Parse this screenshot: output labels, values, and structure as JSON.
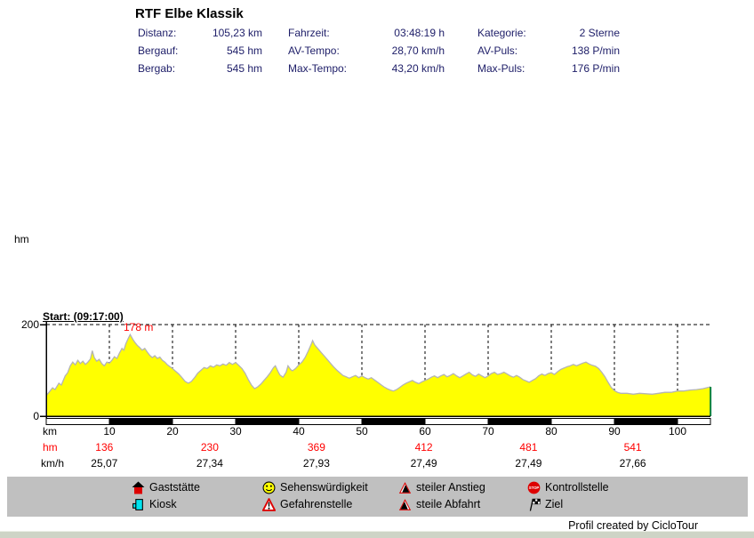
{
  "title": "RTF Elbe Klassik",
  "stats": {
    "rows": [
      {
        "c1_label": "Distanz:",
        "c1_value": "105,23 km",
        "c2_label": "Fahrzeit:",
        "c2_value": "03:48:19 h",
        "c3_label": "Kategorie:",
        "c3_value": "2 Sterne"
      },
      {
        "c1_label": "Bergauf:",
        "c1_value": "545 hm",
        "c2_label": "AV-Tempo:",
        "c2_value": "28,70 km/h",
        "c3_label": "AV-Puls:",
        "c3_value": "138 P/min"
      },
      {
        "c1_label": "Bergab:",
        "c1_value": "545 hm",
        "c2_label": "Max-Tempo:",
        "c2_value": "43,20 km/h",
        "c3_label": "Max-Puls:",
        "c3_value": "176 P/min"
      }
    ]
  },
  "chart_data": {
    "type": "area",
    "ylabel": "hm",
    "ylim": [
      0,
      200
    ],
    "y_tick_max": "200",
    "y_tick_min": "0",
    "start_annotation": "Start: (09:17:00)",
    "peak_annotation": "178 m",
    "peak_value_m": 178,
    "total_km": 105.23,
    "x_axis": {
      "unit_label": "km",
      "ticks": [
        10,
        20,
        30,
        40,
        50,
        60,
        70,
        80,
        90,
        100
      ]
    },
    "rows": {
      "km_label": "km",
      "hm_label": "hm",
      "kmh_label": "km/h",
      "hm_values": [
        "136",
        "230",
        "369",
        "412",
        "481",
        "541"
      ],
      "kmh_values": [
        "25,07",
        "27,34",
        "27,93",
        "27,49",
        "27,49",
        "27,66"
      ],
      "at_km": [
        9.2,
        25.9,
        42.8,
        59.8,
        76.4,
        92.9
      ]
    },
    "profile_km_m": [
      [
        0,
        45
      ],
      [
        0.6,
        55
      ],
      [
        1,
        62
      ],
      [
        1.4,
        58
      ],
      [
        2,
        72
      ],
      [
        2.4,
        68
      ],
      [
        3,
        88
      ],
      [
        3.4,
        95
      ],
      [
        3.8,
        110
      ],
      [
        4.2,
        118
      ],
      [
        4.6,
        112
      ],
      [
        5,
        122
      ],
      [
        5.4,
        115
      ],
      [
        5.8,
        120
      ],
      [
        6.2,
        113
      ],
      [
        6.6,
        118
      ],
      [
        7,
        125
      ],
      [
        7.3,
        143
      ],
      [
        7.6,
        128
      ],
      [
        8,
        120
      ],
      [
        8.4,
        124
      ],
      [
        8.8,
        115
      ],
      [
        9.2,
        110
      ],
      [
        9.6,
        118
      ],
      [
        10,
        116
      ],
      [
        10.4,
        122
      ],
      [
        10.8,
        130
      ],
      [
        11.2,
        126
      ],
      [
        11.6,
        138
      ],
      [
        12,
        148
      ],
      [
        12.3,
        144
      ],
      [
        12.6,
        158
      ],
      [
        13,
        170
      ],
      [
        13.3,
        178
      ],
      [
        13.7,
        168
      ],
      [
        14,
        162
      ],
      [
        14.4,
        155
      ],
      [
        14.8,
        150
      ],
      [
        15.2,
        144
      ],
      [
        15.6,
        148
      ],
      [
        16,
        140
      ],
      [
        16.4,
        133
      ],
      [
        16.8,
        128
      ],
      [
        17.2,
        132
      ],
      [
        17.6,
        126
      ],
      [
        18,
        129
      ],
      [
        18.4,
        122
      ],
      [
        18.8,
        118
      ],
      [
        19.2,
        112
      ],
      [
        19.6,
        108
      ],
      [
        20,
        104
      ],
      [
        20.5,
        98
      ],
      [
        21,
        92
      ],
      [
        21.5,
        84
      ],
      [
        22,
        76
      ],
      [
        22.5,
        72
      ],
      [
        23,
        76
      ],
      [
        23.5,
        84
      ],
      [
        24,
        94
      ],
      [
        24.5,
        100
      ],
      [
        25,
        106
      ],
      [
        25.5,
        104
      ],
      [
        26,
        110
      ],
      [
        26.5,
        107
      ],
      [
        27,
        112
      ],
      [
        27.5,
        110
      ],
      [
        28,
        114
      ],
      [
        28.5,
        111
      ],
      [
        29,
        117
      ],
      [
        29.5,
        113
      ],
      [
        30,
        117
      ],
      [
        30.5,
        111
      ],
      [
        31,
        104
      ],
      [
        31.5,
        94
      ],
      [
        32,
        80
      ],
      [
        32.5,
        68
      ],
      [
        33,
        60
      ],
      [
        33.5,
        64
      ],
      [
        34,
        70
      ],
      [
        34.5,
        78
      ],
      [
        35,
        86
      ],
      [
        35.5,
        95
      ],
      [
        36,
        106
      ],
      [
        36.3,
        110
      ],
      [
        36.7,
        98
      ],
      [
        37,
        90
      ],
      [
        37.5,
        85
      ],
      [
        38,
        96
      ],
      [
        38.3,
        110
      ],
      [
        38.7,
        102
      ],
      [
        39,
        99
      ],
      [
        39.5,
        104
      ],
      [
        40,
        112
      ],
      [
        40.5,
        118
      ],
      [
        41,
        128
      ],
      [
        41.5,
        142
      ],
      [
        42,
        158
      ],
      [
        42.2,
        165
      ],
      [
        42.5,
        156
      ],
      [
        43,
        148
      ],
      [
        43.5,
        140
      ],
      [
        44,
        132
      ],
      [
        44.5,
        124
      ],
      [
        45,
        116
      ],
      [
        45.5,
        108
      ],
      [
        46,
        101
      ],
      [
        46.5,
        95
      ],
      [
        47,
        89
      ],
      [
        47.5,
        86
      ],
      [
        48,
        83
      ],
      [
        48.5,
        86
      ],
      [
        49,
        89
      ],
      [
        49.5,
        84
      ],
      [
        50,
        88
      ],
      [
        50.5,
        84
      ],
      [
        51,
        81
      ],
      [
        51.5,
        84
      ],
      [
        52,
        79
      ],
      [
        52.5,
        74
      ],
      [
        53,
        69
      ],
      [
        53.5,
        64
      ],
      [
        54,
        60
      ],
      [
        54.5,
        57
      ],
      [
        55,
        55
      ],
      [
        55.5,
        58
      ],
      [
        56,
        63
      ],
      [
        56.5,
        68
      ],
      [
        57,
        72
      ],
      [
        57.5,
        75
      ],
      [
        58,
        78
      ],
      [
        58.5,
        74
      ],
      [
        59,
        71
      ],
      [
        59.5,
        75
      ],
      [
        60,
        78
      ],
      [
        60.5,
        81
      ],
      [
        61,
        85
      ],
      [
        61.5,
        88
      ],
      [
        62,
        84
      ],
      [
        62.5,
        88
      ],
      [
        63,
        91
      ],
      [
        63.5,
        86
      ],
      [
        64,
        89
      ],
      [
        64.5,
        93
      ],
      [
        65,
        88
      ],
      [
        65.5,
        84
      ],
      [
        66,
        88
      ],
      [
        66.5,
        92
      ],
      [
        67,
        96
      ],
      [
        67.5,
        90
      ],
      [
        68,
        87
      ],
      [
        68.5,
        92
      ],
      [
        69,
        88
      ],
      [
        69.5,
        84
      ],
      [
        70,
        88
      ],
      [
        70.5,
        93
      ],
      [
        71,
        96
      ],
      [
        71.5,
        91
      ],
      [
        72,
        93
      ],
      [
        72.5,
        96
      ],
      [
        73,
        92
      ],
      [
        73.5,
        88
      ],
      [
        74,
        85
      ],
      [
        74.5,
        89
      ],
      [
        75,
        85
      ],
      [
        75.5,
        80
      ],
      [
        76,
        77
      ],
      [
        76.5,
        74
      ],
      [
        77,
        78
      ],
      [
        77.5,
        82
      ],
      [
        78,
        88
      ],
      [
        78.5,
        92
      ],
      [
        79,
        89
      ],
      [
        79.5,
        93
      ],
      [
        80,
        95
      ],
      [
        80.5,
        91
      ],
      [
        81,
        97
      ],
      [
        81.5,
        102
      ],
      [
        82,
        105
      ],
      [
        82.5,
        108
      ],
      [
        83,
        110
      ],
      [
        83.5,
        113
      ],
      [
        84,
        110
      ],
      [
        84.5,
        113
      ],
      [
        85,
        116
      ],
      [
        85.5,
        118
      ],
      [
        86,
        114
      ],
      [
        86.5,
        111
      ],
      [
        87,
        109
      ],
      [
        87.5,
        104
      ],
      [
        88,
        96
      ],
      [
        88.5,
        86
      ],
      [
        89,
        74
      ],
      [
        89.5,
        63
      ],
      [
        90,
        56
      ],
      [
        90.5,
        52
      ],
      [
        91,
        50
      ],
      [
        92,
        50
      ],
      [
        93,
        48
      ],
      [
        94,
        50
      ],
      [
        95,
        49
      ],
      [
        96,
        48
      ],
      [
        97,
        50
      ],
      [
        98,
        52
      ],
      [
        99,
        52
      ],
      [
        100,
        55
      ],
      [
        101,
        55
      ],
      [
        102,
        57
      ],
      [
        103,
        58
      ],
      [
        104,
        60
      ],
      [
        105.23,
        64
      ]
    ],
    "grid": "dashed",
    "legend_position": "bottom"
  },
  "legend": {
    "items": [
      {
        "icon": "house",
        "label": "Gaststätte"
      },
      {
        "icon": "kiosk",
        "label": "Kiosk"
      },
      {
        "icon": "smiley",
        "label": "Sehenswürdigkeit"
      },
      {
        "icon": "warning",
        "label": "Gefahrenstelle"
      },
      {
        "icon": "steep-climb",
        "label": "steiler Anstieg"
      },
      {
        "icon": "steep-descent",
        "label": "steile Abfahrt"
      },
      {
        "icon": "stop",
        "label": "Kontrollstelle"
      },
      {
        "icon": "flag",
        "label": "Ziel"
      }
    ]
  },
  "footer": {
    "credit": "Profil created by CicloTour"
  },
  "colors": {
    "profile_fill": "#ffff00",
    "profile_stroke": "#b4b4b4",
    "accent_red": "#ff0000",
    "stats_text": "#20206a",
    "legend_bg": "#c0c0c0",
    "finish_line": "#008040"
  }
}
